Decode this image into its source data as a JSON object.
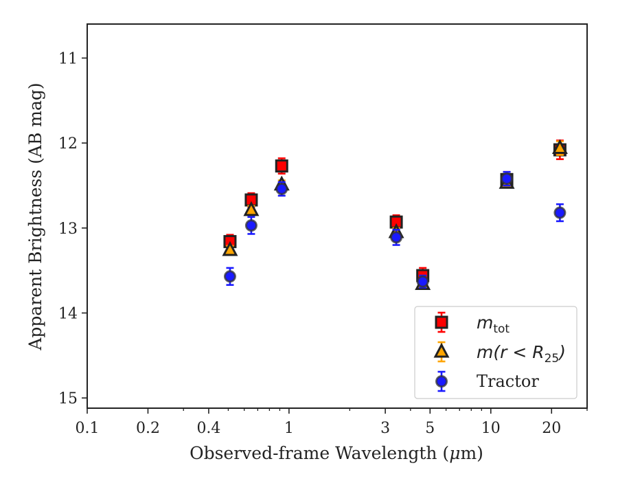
{
  "chart_data": {
    "type": "scatter",
    "xlabel": "Observed-frame Wavelength (μm)",
    "xlabel_parts": {
      "before": "Observed-frame Wavelength (",
      "mu": "μ",
      "after": "m)"
    },
    "ylabel": "Apparent Brightness (AB mag)",
    "x_scale": "log",
    "xlim": [
      0.1,
      30
    ],
    "ylim": [
      15.12,
      10.6
    ],
    "y_inverted": true,
    "grid": false,
    "legend_position": "lower right",
    "x_ticks": [
      {
        "value": 0.1,
        "label": "0.1"
      },
      {
        "value": 0.2,
        "label": "0.2"
      },
      {
        "value": 0.4,
        "label": "0.4"
      },
      {
        "value": 1,
        "label": "1"
      },
      {
        "value": 3,
        "label": "3"
      },
      {
        "value": 5,
        "label": "5"
      },
      {
        "value": 10,
        "label": "10"
      },
      {
        "value": 20,
        "label": "20"
      }
    ],
    "y_ticks": [
      {
        "value": 11,
        "label": "11"
      },
      {
        "value": 12,
        "label": "12"
      },
      {
        "value": 13,
        "label": "13"
      },
      {
        "value": 14,
        "label": "14"
      },
      {
        "value": 15,
        "label": "15"
      }
    ],
    "series": [
      {
        "name": "m_tot",
        "legend": {
          "base": "m",
          "sub": "tot",
          "suffix": ""
        },
        "marker": "square",
        "color": "#ff0000",
        "points": [
          {
            "x": 0.51,
            "y": 13.16,
            "err": 0.08
          },
          {
            "x": 0.65,
            "y": 12.67,
            "err": 0.08
          },
          {
            "x": 0.92,
            "y": 12.27,
            "err": 0.09
          },
          {
            "x": 3.4,
            "y": 12.93,
            "err": 0.08
          },
          {
            "x": 4.6,
            "y": 13.56,
            "err": 0.09
          },
          {
            "x": 12.0,
            "y": 12.43,
            "err": 0.09
          },
          {
            "x": 22.0,
            "y": 12.08,
            "err": 0.11
          }
        ]
      },
      {
        "name": "m(r < R25)",
        "legend": {
          "base": "m(r < R",
          "sub": "25",
          "suffix": ")"
        },
        "marker": "triangle",
        "color": "#ffa500",
        "points": [
          {
            "x": 0.51,
            "y": 13.26,
            "err": 0.05
          },
          {
            "x": 0.65,
            "y": 12.79,
            "err": 0.05
          },
          {
            "x": 0.92,
            "y": 12.49,
            "err": 0.05
          },
          {
            "x": 3.4,
            "y": 13.05,
            "err": 0.05
          },
          {
            "x": 4.6,
            "y": 13.66,
            "err": 0.05
          },
          {
            "x": 12.0,
            "y": 12.47,
            "err": 0.05
          },
          {
            "x": 22.0,
            "y": 12.06,
            "err": 0.08
          }
        ]
      },
      {
        "name": "Tractor",
        "legend": {
          "base": "Tractor",
          "sub": "",
          "suffix": ""
        },
        "marker": "circle",
        "color": "#1a1aff",
        "points": [
          {
            "x": 0.51,
            "y": 13.57,
            "err": 0.1
          },
          {
            "x": 0.65,
            "y": 12.97,
            "err": 0.1
          },
          {
            "x": 0.92,
            "y": 12.54,
            "err": 0.08
          },
          {
            "x": 3.4,
            "y": 13.11,
            "err": 0.09
          },
          {
            "x": 4.6,
            "y": 13.63,
            "err": 0.07
          },
          {
            "x": 12.0,
            "y": 12.42,
            "err": 0.08
          },
          {
            "x": 22.0,
            "y": 12.82,
            "err": 0.1
          }
        ]
      }
    ]
  }
}
